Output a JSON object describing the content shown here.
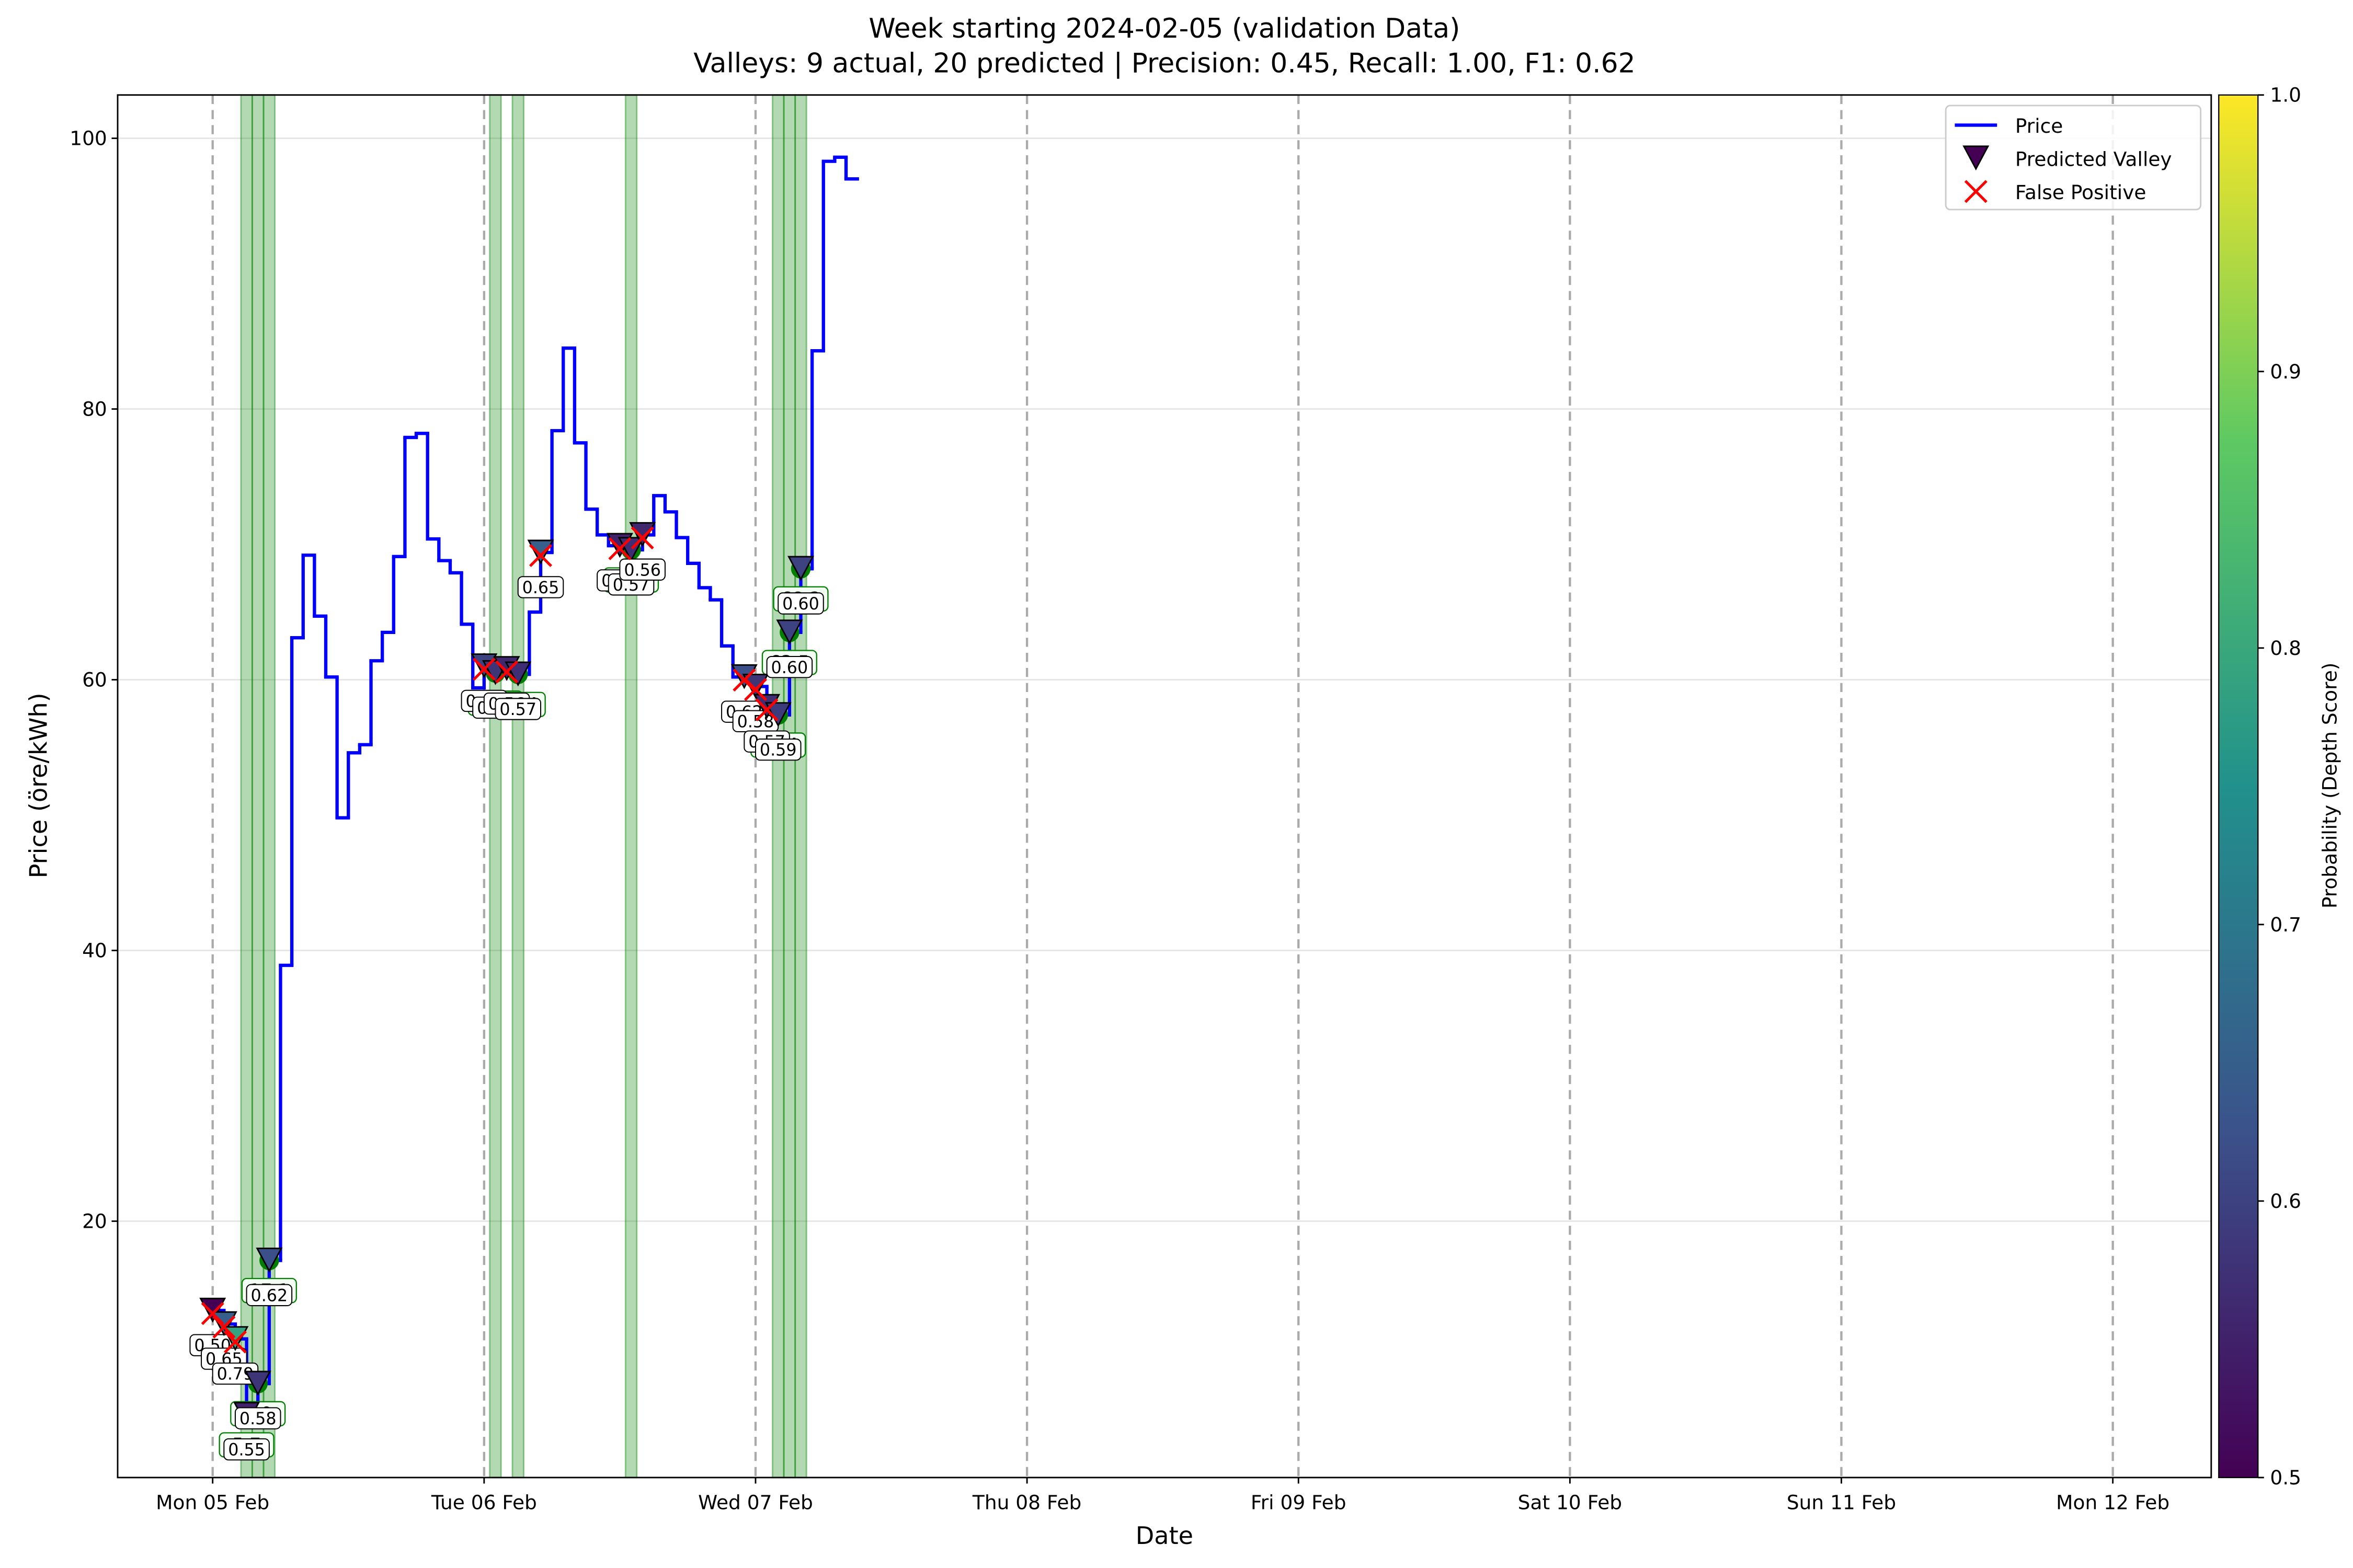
{
  "chart_data": {
    "type": "step",
    "title": "Week starting 2024-02-05 (validation Data)",
    "subtitle": "Valleys: 9 actual, 20 predicted | Precision: 0.45, Recall: 1.00, F1: 0.62",
    "x_label": "Date",
    "y_label": "Price (öre/kWh)",
    "colorbar_label": "Probability (Depth Score)",
    "x": [
      0,
      1,
      2,
      3,
      4,
      5,
      6,
      7,
      8,
      9,
      10,
      11,
      12,
      13,
      14,
      15,
      16,
      17,
      18,
      19,
      20,
      21,
      22,
      23,
      24,
      25,
      26,
      27,
      28,
      29,
      30,
      31,
      32,
      33,
      34,
      35,
      36,
      37,
      38,
      39,
      40,
      41,
      42,
      43,
      44,
      45,
      46,
      47,
      48,
      49,
      50,
      51,
      52,
      53,
      54,
      55,
      56
    ],
    "series": [
      {
        "name": "Price",
        "color": "#0000ff",
        "values": [
          13.4,
          12.4,
          11.3,
          5.7,
          8.0,
          17.1,
          38.9,
          63.1,
          69.2,
          64.7,
          60.2,
          49.8,
          54.6,
          55.2,
          61.4,
          63.5,
          69.1,
          77.9,
          78.2,
          70.4,
          68.8,
          67.9,
          64.1,
          59.4,
          61.0,
          60.5,
          60.8,
          60.4,
          65.0,
          69.4,
          78.4,
          84.5,
          77.5,
          72.6,
          70.7,
          69.9,
          69.9,
          69.6,
          70.7,
          73.6,
          72.4,
          70.5,
          68.6,
          66.8,
          65.9,
          62.5,
          60.2,
          60.2,
          59.5,
          58.0,
          57.4,
          63.5,
          68.2,
          84.3,
          98.3,
          98.6,
          97.0
        ]
      }
    ],
    "actual_valleys": {
      "color": "#008000",
      "x": [
        3,
        4,
        5,
        25,
        27,
        37,
        50,
        51,
        52
      ],
      "values": [
        5.7,
        8.0,
        17.1,
        60.5,
        60.4,
        69.6,
        57.4,
        63.5,
        68.2
      ],
      "value_labels": [
        "5.7",
        "8.0",
        "17.1",
        "60.5",
        "60.4",
        "69.6",
        "57.4",
        "63.5",
        "68.2"
      ]
    },
    "predicted_valleys": {
      "name": "Predicted Valley",
      "x": [
        0,
        1,
        2,
        3,
        4,
        5,
        24,
        25,
        26,
        27,
        29,
        36,
        37,
        38,
        47,
        48,
        49,
        50,
        51,
        52
      ],
      "values": [
        0.5,
        0.65,
        0.79,
        0.55,
        0.58,
        0.62,
        0.6,
        0.58,
        0.56,
        0.57,
        0.65,
        0.55,
        0.57,
        0.56,
        0.62,
        0.58,
        0.57,
        0.59,
        0.6,
        0.6
      ],
      "value_labels": [
        "0.50",
        "0.65",
        "0.79",
        "0.55",
        "0.58",
        "0.62",
        "0.60",
        "0.58",
        "0.56",
        "0.57",
        "0.65",
        "0.55",
        "0.57",
        "0.56",
        "0.62",
        "0.58",
        "0.57",
        "0.59",
        "0.60",
        "0.60"
      ]
    },
    "false_positives": {
      "name": "False Positive",
      "color": "#ff0000",
      "x": [
        0,
        1,
        2,
        24,
        26,
        29,
        36,
        38,
        47,
        48,
        49
      ]
    },
    "xlim": [
      -8.4,
      176.7
    ],
    "xticks": [
      {
        "value": 0,
        "label": "Mon 05 Feb"
      },
      {
        "value": 24,
        "label": "Tue 06 Feb"
      },
      {
        "value": 48,
        "label": "Wed 07 Feb"
      },
      {
        "value": 72,
        "label": "Thu 08 Feb"
      },
      {
        "value": 96,
        "label": "Fri 09 Feb"
      },
      {
        "value": 120,
        "label": "Sat 10 Feb"
      },
      {
        "value": 144,
        "label": "Sun 11 Feb"
      },
      {
        "value": 168,
        "label": "Mon 12 Feb"
      }
    ],
    "ylim": [
      1.06,
      103.2
    ],
    "yticks": [
      20,
      40,
      60,
      80,
      100
    ],
    "clim": [
      0.5,
      1
    ],
    "cticks": [
      0.5,
      0.6,
      0.7,
      0.8,
      0.9,
      {
        "value": 1,
        "label": "1.0"
      }
    ],
    "grid": true,
    "legend": "upper right"
  }
}
